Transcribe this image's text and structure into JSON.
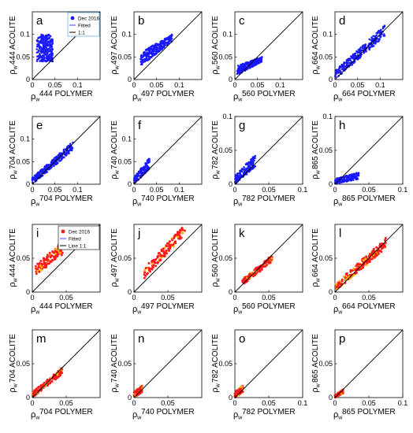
{
  "figure": {
    "colors": {
      "dec_blue": "#1a1aff",
      "dec_red": "#ff1a1a",
      "red_core": "#ffb000",
      "fitted": "#4040ff",
      "line": "#000000"
    }
  },
  "chart_data": [
    {
      "type": "scatter",
      "panel_label": "a",
      "band": "444",
      "xlabel_sym": "ρ",
      "xlabel_sub": "w",
      "xlabel_text": "444 POLYMER",
      "ylabel_text": "444 ACOLITE",
      "xlim": [
        0,
        0.15
      ],
      "ylim": [
        0,
        0.15
      ],
      "xticks": [
        0,
        0.05,
        0.1
      ],
      "yticks": [
        0,
        0.05,
        0.1
      ],
      "x_tick_labels": [
        "0",
        "0.05",
        "0.1"
      ],
      "y_tick_labels": [
        "0",
        "0.05",
        "0.1"
      ],
      "color": "blue",
      "cloud": {
        "shape": "rect",
        "x": [
          0.01,
          0.045
        ],
        "y": [
          0.04,
          0.1
        ],
        "density": "dense"
      },
      "legend": {
        "entries": [
          "Dec 2016",
          "Fitted",
          "1:1"
        ]
      }
    },
    {
      "type": "scatter",
      "panel_label": "b",
      "band": "497",
      "xlabel_sym": "ρ",
      "xlabel_sub": "w",
      "xlabel_text": "497 POLYMER",
      "ylabel_text": "497 ACOLITE",
      "xlim": [
        0,
        0.15
      ],
      "ylim": [
        0,
        0.15
      ],
      "xticks": [
        0,
        0.05,
        0.1
      ],
      "yticks": [
        0,
        0.05,
        0.1
      ],
      "x_tick_labels": [
        "0",
        "0.05",
        "0.1"
      ],
      "y_tick_labels": [
        "0",
        "0.05",
        "0.1"
      ],
      "color": "blue",
      "cloud": {
        "shape": "band",
        "x": [
          0.015,
          0.085
        ],
        "y_at_x0": [
          0.03,
          0.06
        ],
        "y_at_x1": [
          0.085,
          0.1
        ],
        "ymax": 0.1,
        "density": "dense"
      }
    },
    {
      "type": "scatter",
      "panel_label": "c",
      "band": "560",
      "xlabel_sym": "ρ",
      "xlabel_sub": "w",
      "xlabel_text": "560 POLYMER",
      "ylabel_text": "560 ACOLITE",
      "xlim": [
        0,
        0.15
      ],
      "ylim": [
        0,
        0.15
      ],
      "xticks": [
        0,
        0.05,
        0.1
      ],
      "yticks": [
        0,
        0.05,
        0.1
      ],
      "x_tick_labels": [
        "0",
        "0.05",
        "0.1"
      ],
      "y_tick_labels": [
        "0",
        "0.05",
        "0.1"
      ],
      "color": "blue",
      "cloud": {
        "shape": "band",
        "x": [
          0.005,
          0.06
        ],
        "y_at_x0": [
          0.01,
          0.03
        ],
        "y_at_x1": [
          0.04,
          0.05
        ],
        "ymax": 0.05,
        "density": "dense"
      }
    },
    {
      "type": "scatter",
      "panel_label": "d",
      "band": "664",
      "xlabel_sym": "ρ",
      "xlabel_sub": "w",
      "xlabel_text": "664 POLYMER",
      "ylabel_text": "664 ACOLITE",
      "xlim": [
        0,
        0.15
      ],
      "ylim": [
        0,
        0.15
      ],
      "xticks": [
        0,
        0.05,
        0.1
      ],
      "yticks": [
        0,
        0.05,
        0.1
      ],
      "x_tick_labels": [
        "0",
        "0.05",
        "0.1"
      ],
      "y_tick_labels": [
        "0",
        "0.05",
        "0.1"
      ],
      "color": "blue",
      "cloud": {
        "shape": "band",
        "x": [
          0,
          0.11
        ],
        "y_at_x0": [
          0.0,
          0.02
        ],
        "y_at_x1": [
          0.095,
          0.12
        ],
        "ymax": 0.12,
        "density": "dense"
      }
    },
    {
      "type": "scatter",
      "panel_label": "e",
      "band": "704",
      "xlabel_sym": "ρ",
      "xlabel_sub": "w",
      "xlabel_text": "704 POLYMER",
      "ylabel_text": "704 ACOLITE",
      "xlim": [
        0,
        0.15
      ],
      "ylim": [
        0,
        0.15
      ],
      "xticks": [
        0,
        0.05,
        0.1
      ],
      "yticks": [
        0,
        0.05,
        0.1
      ],
      "x_tick_labels": [
        "0",
        "0.05",
        "0.1"
      ],
      "y_tick_labels": [
        "0",
        "0.05",
        "0.1"
      ],
      "color": "blue",
      "cloud": {
        "shape": "band",
        "x": [
          0,
          0.09
        ],
        "y_at_x0": [
          0.0,
          0.015
        ],
        "y_at_x1": [
          0.075,
          0.095
        ],
        "ymax": 0.1,
        "density": "dense"
      }
    },
    {
      "type": "scatter",
      "panel_label": "f",
      "band": "740",
      "xlabel_sym": "ρ",
      "xlabel_sub": "w",
      "xlabel_text": "740 POLYMER",
      "ylabel_text": "740 ACOLITE",
      "xlim": [
        0,
        0.15
      ],
      "ylim": [
        0,
        0.15
      ],
      "xticks": [
        0,
        0.05,
        0.1
      ],
      "yticks": [
        0,
        0.05,
        0.1
      ],
      "x_tick_labels": [
        "0",
        "0.05",
        "0.1"
      ],
      "y_tick_labels": [
        "0",
        "0.05",
        "0.1"
      ],
      "color": "blue",
      "cloud": {
        "shape": "band",
        "x": [
          0,
          0.035
        ],
        "y_at_x0": [
          0.0,
          0.015
        ],
        "y_at_x1": [
          0.035,
          0.06
        ],
        "ymax": 0.06,
        "density": "medium"
      }
    },
    {
      "type": "scatter",
      "panel_label": "g",
      "band": "782",
      "xlabel_sym": "ρ",
      "xlabel_sub": "w",
      "xlabel_text": "782 POLYMER",
      "ylabel_text": "782 ACOLITE",
      "xlim": [
        0,
        0.1
      ],
      "ylim": [
        0,
        0.1
      ],
      "xticks": [
        0,
        0.05,
        0.1
      ],
      "yticks": [
        0,
        0.05,
        0.1
      ],
      "x_tick_labels": [
        "0",
        "0.05",
        "0.1"
      ],
      "y_tick_labels": [
        "0",
        "0.05",
        "0.1"
      ],
      "color": "blue",
      "cloud": {
        "shape": "band",
        "x": [
          0,
          0.03
        ],
        "y_at_x0": [
          0.0,
          0.012
        ],
        "y_at_x1": [
          0.025,
          0.045
        ],
        "ymax": 0.05,
        "density": "medium"
      }
    },
    {
      "type": "scatter",
      "panel_label": "h",
      "band": "865",
      "xlabel_sym": "ρ",
      "xlabel_sub": "w",
      "xlabel_text": "865 POLYMER",
      "ylabel_text": "865 ACOLITE",
      "xlim": [
        0,
        0.1
      ],
      "ylim": [
        0,
        0.1
      ],
      "xticks": [
        0,
        0.05,
        0.1
      ],
      "yticks": [
        0,
        0.05,
        0.1
      ],
      "x_tick_labels": [
        "0",
        "0.05",
        "0.1"
      ],
      "y_tick_labels": [
        "0",
        "0.05",
        "0.1"
      ],
      "color": "blue",
      "cloud": {
        "shape": "band",
        "x": [
          0,
          0.035
        ],
        "y_at_x0": [
          0.0,
          0.008
        ],
        "y_at_x1": [
          0.008,
          0.018
        ],
        "ymax": 0.02,
        "density": "medium"
      }
    },
    {
      "type": "scatter",
      "panel_label": "i",
      "band": "444",
      "xlabel_sym": "ρ",
      "xlabel_sub": "w",
      "xlabel_text": "444 POLYMER",
      "ylabel_text": "444 ACOLITE",
      "xlim": [
        0,
        0.1
      ],
      "ylim": [
        0,
        0.1
      ],
      "xticks": [
        0,
        0.05
      ],
      "yticks": [
        0,
        0.05
      ],
      "x_tick_labels": [
        "0",
        "0.05"
      ],
      "y_tick_labels": [
        "0",
        "0.05"
      ],
      "color": "red",
      "cloud": {
        "shape": "band",
        "x": [
          0.005,
          0.045
        ],
        "y_at_x0": [
          0.025,
          0.04
        ],
        "y_at_x1": [
          0.055,
          0.075
        ],
        "ymax": 0.075,
        "density": "medium"
      },
      "legend": {
        "entries": [
          "Dec 2016",
          "Fitted",
          "Line 1:1"
        ]
      }
    },
    {
      "type": "scatter",
      "panel_label": "j",
      "band": "497",
      "xlabel_sym": "ρ",
      "xlabel_sub": "w",
      "xlabel_text": "497 POLYMER",
      "ylabel_text": "497 ACOLITE",
      "xlim": [
        0,
        0.1
      ],
      "ylim": [
        0,
        0.1
      ],
      "xticks": [
        0,
        0.05
      ],
      "yticks": [
        0,
        0.05
      ],
      "x_tick_labels": [
        "0",
        "0.05"
      ],
      "y_tick_labels": [
        "0",
        "0.05"
      ],
      "color": "red",
      "cloud": {
        "shape": "band",
        "x": [
          0.015,
          0.075
        ],
        "y_at_x0": [
          0.02,
          0.035
        ],
        "y_at_x1": [
          0.085,
          0.1
        ],
        "ymax": 0.1,
        "density": "medium"
      }
    },
    {
      "type": "scatter",
      "panel_label": "k",
      "band": "560",
      "xlabel_sym": "ρ",
      "xlabel_sub": "w",
      "xlabel_text": "560 POLYMER",
      "ylabel_text": "560 ACOLITE",
      "xlim": [
        0,
        0.1
      ],
      "ylim": [
        0,
        0.1
      ],
      "xticks": [
        0,
        0.05
      ],
      "yticks": [
        0,
        0.05
      ],
      "x_tick_labels": [
        "0",
        "0.05"
      ],
      "y_tick_labels": [
        "0",
        "0.05"
      ],
      "color": "red",
      "cloud": {
        "shape": "band",
        "x": [
          0.01,
          0.055
        ],
        "y_at_x0": [
          0.008,
          0.018
        ],
        "y_at_x1": [
          0.045,
          0.055
        ],
        "ymax": 0.055,
        "density": "medium"
      }
    },
    {
      "type": "scatter",
      "panel_label": "l",
      "band": "664",
      "xlabel_sym": "ρ",
      "xlabel_sub": "w",
      "xlabel_text": "664 POLYMER",
      "ylabel_text": "664 ACOLITE",
      "xlim": [
        0,
        0.1
      ],
      "ylim": [
        0,
        0.1
      ],
      "xticks": [
        0,
        0.05
      ],
      "yticks": [
        0,
        0.05
      ],
      "x_tick_labels": [
        "0",
        "0.05"
      ],
      "y_tick_labels": [
        "0",
        "0.05"
      ],
      "color": "red",
      "cloud": {
        "shape": "band",
        "x": [
          0,
          0.075
        ],
        "y_at_x0": [
          0.0,
          0.012
        ],
        "y_at_x1": [
          0.065,
          0.08
        ],
        "ymax": 0.08,
        "density": "dense"
      }
    },
    {
      "type": "scatter",
      "panel_label": "m",
      "band": "704",
      "xlabel_sym": "ρ",
      "xlabel_sub": "w",
      "xlabel_text": "704 POLYMER",
      "ylabel_text": "704 ACOLITE",
      "xlim": [
        0,
        0.1
      ],
      "ylim": [
        0,
        0.1
      ],
      "xticks": [
        0,
        0.05
      ],
      "yticks": [
        0,
        0.05
      ],
      "x_tick_labels": [
        "0",
        "0.05"
      ],
      "y_tick_labels": [
        "0",
        "0.05"
      ],
      "color": "red",
      "cloud": {
        "shape": "band",
        "x": [
          0,
          0.045
        ],
        "y_at_x0": [
          0.0,
          0.008
        ],
        "y_at_x1": [
          0.035,
          0.045
        ],
        "ymax": 0.045,
        "density": "medium"
      }
    },
    {
      "type": "scatter",
      "panel_label": "n",
      "band": "740",
      "xlabel_sym": "ρ",
      "xlabel_sub": "w",
      "xlabel_text": "740 POLYMER",
      "ylabel_text": "740 ACOLITE",
      "xlim": [
        0,
        0.1
      ],
      "ylim": [
        0,
        0.1
      ],
      "xticks": [
        0,
        0.05
      ],
      "yticks": [
        0,
        0.05
      ],
      "x_tick_labels": [
        "0",
        "0.05"
      ],
      "y_tick_labels": [
        "0",
        "0.05"
      ],
      "color": "red",
      "cloud": {
        "shape": "band",
        "x": [
          0,
          0.012
        ],
        "y_at_x0": [
          0.0,
          0.008
        ],
        "y_at_x1": [
          0.008,
          0.018
        ],
        "ymax": 0.018,
        "density": "medium"
      }
    },
    {
      "type": "scatter",
      "panel_label": "o",
      "band": "782",
      "xlabel_sym": "ρ",
      "xlabel_sub": "w",
      "xlabel_text": "782 POLYMER",
      "ylabel_text": "782 ACOLITE",
      "xlim": [
        0,
        0.1
      ],
      "ylim": [
        0,
        0.1
      ],
      "xticks": [
        0,
        0.05,
        0.1
      ],
      "yticks": [
        0,
        0.05
      ],
      "x_tick_labels": [
        "0",
        "0.05",
        "0.1"
      ],
      "y_tick_labels": [
        "0",
        "0.05"
      ],
      "color": "red",
      "cloud": {
        "shape": "band",
        "x": [
          0,
          0.012
        ],
        "y_at_x0": [
          0.0,
          0.008
        ],
        "y_at_x1": [
          0.008,
          0.018
        ],
        "ymax": 0.018,
        "density": "medium"
      }
    },
    {
      "type": "scatter",
      "panel_label": "p",
      "band": "865",
      "xlabel_sym": "ρ",
      "xlabel_sub": "w",
      "xlabel_text": "865 POLYMER",
      "ylabel_text": "865 ACOLITE",
      "xlim": [
        0,
        0.1
      ],
      "ylim": [
        0,
        0.1
      ],
      "xticks": [
        0,
        0.05,
        0.1
      ],
      "yticks": [
        0,
        0.05
      ],
      "x_tick_labels": [
        "0",
        "0.05",
        "0.1"
      ],
      "y_tick_labels": [
        "0",
        "0.05"
      ],
      "color": "red",
      "cloud": {
        "shape": "band",
        "x": [
          0,
          0.012
        ],
        "y_at_x0": [
          0.0,
          0.004
        ],
        "y_at_x1": [
          0.006,
          0.012
        ],
        "ymax": 0.012,
        "density": "medium"
      }
    }
  ]
}
